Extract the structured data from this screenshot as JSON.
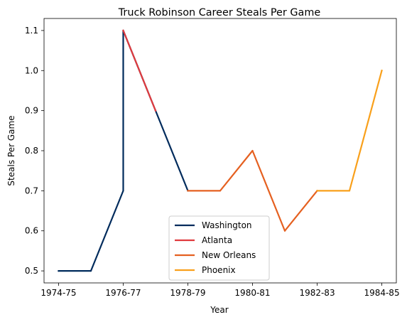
{
  "chart_data": {
    "type": "line",
    "title": "Truck Robinson Career Steals Per Game",
    "xlabel": "Year",
    "ylabel": "Steals Per Game",
    "x_categories": [
      "1974-75",
      "1975-76",
      "1976-77",
      "1977-78",
      "1978-79",
      "1979-80",
      "1980-81",
      "1981-82",
      "1982-83",
      "1983-84",
      "1984-85"
    ],
    "x_tick_labels": [
      "1974-75",
      "1976-77",
      "1978-79",
      "1980-81",
      "1982-83",
      "1984-85"
    ],
    "y_tick_labels": [
      "0.5",
      "0.6",
      "0.7",
      "0.8",
      "0.9",
      "1.0",
      "1.1"
    ],
    "ylim": [
      0.47,
      1.13
    ],
    "grid": false,
    "legend_position": "bottom-center",
    "series": [
      {
        "name": "Washington",
        "color": "#002B5C",
        "points": [
          {
            "x": "1974-75",
            "y": 0.5
          },
          {
            "x": "1975-76",
            "y": 0.5
          },
          {
            "x": "1976-77",
            "y": 0.7
          },
          {
            "x": "1976-77",
            "y": 1.1
          },
          {
            "x": "1977-78",
            "y": 0.9
          },
          {
            "x": "1978-79",
            "y": 0.7
          }
        ]
      },
      {
        "name": "Atlanta",
        "color": "#E03A3E",
        "points": [
          {
            "x": "1976-77",
            "y": 1.1
          },
          {
            "x": "1977-78",
            "y": 0.9
          }
        ]
      },
      {
        "name": "New Orleans",
        "color": "#E56020",
        "points": [
          {
            "x": "1978-79",
            "y": 0.7
          },
          {
            "x": "1979-80",
            "y": 0.7
          },
          {
            "x": "1980-81",
            "y": 0.8
          },
          {
            "x": "1981-82",
            "y": 0.6
          },
          {
            "x": "1982-83",
            "y": 0.7
          }
        ]
      },
      {
        "name": "Phoenix",
        "color": "#F9A01B",
        "points": [
          {
            "x": "1982-83",
            "y": 0.7
          },
          {
            "x": "1983-84",
            "y": 0.7
          },
          {
            "x": "1984-85",
            "y": 1.0
          }
        ]
      }
    ]
  }
}
